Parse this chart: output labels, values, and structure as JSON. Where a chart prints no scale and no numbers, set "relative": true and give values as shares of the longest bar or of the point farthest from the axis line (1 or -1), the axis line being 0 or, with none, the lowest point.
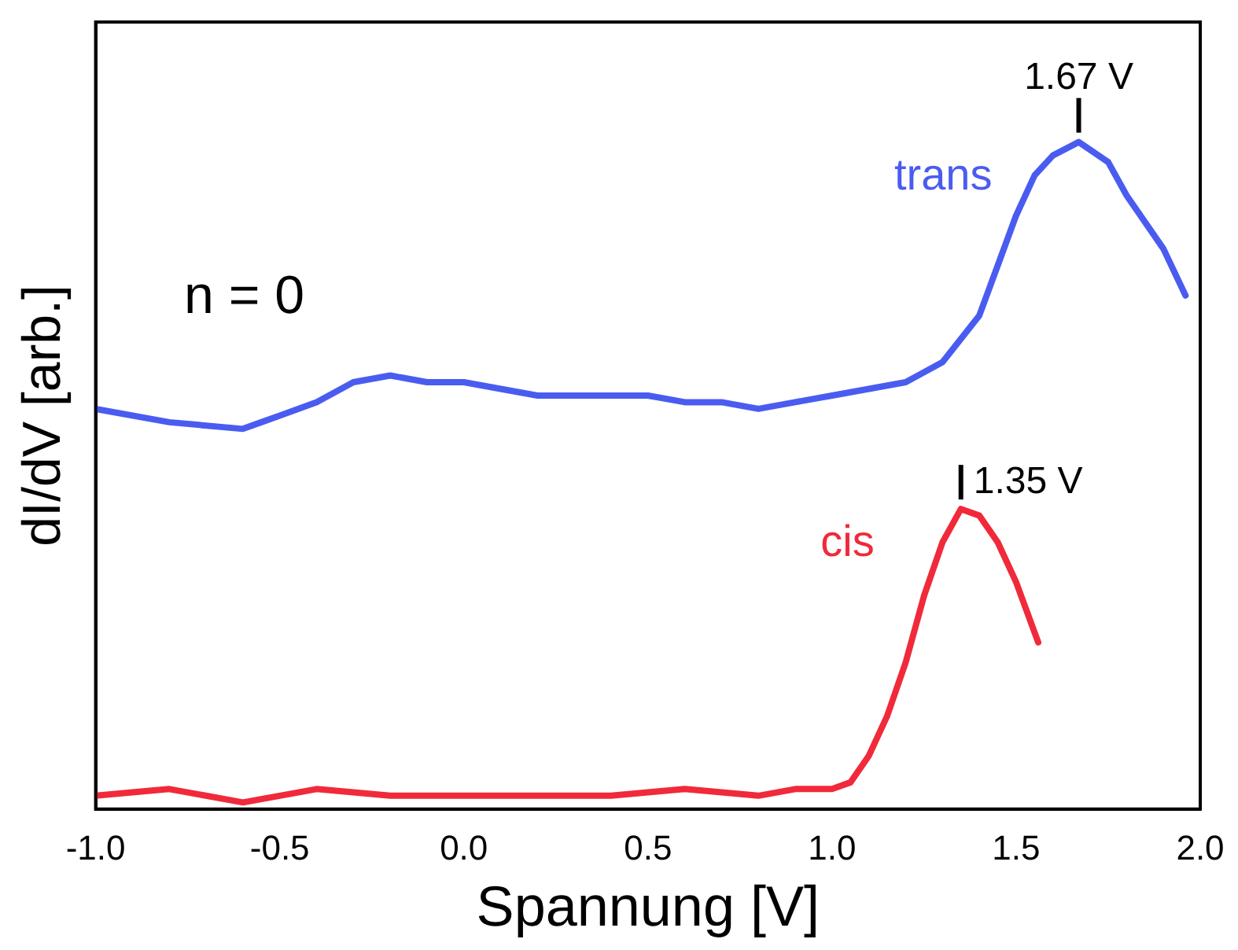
{
  "chart_data": {
    "type": "line",
    "xlabel": "Spannung [V]",
    "ylabel": "dI/dV [arb.]",
    "relative": true,
    "legend": false,
    "grid": false,
    "marker": "none",
    "line_style": "solid",
    "xlim": [
      -1.0,
      2.0
    ],
    "xticks": [
      {
        "value": -1,
        "label": "-1.0"
      },
      -0.5,
      {
        "value": 0,
        "label": "0.0"
      },
      0.5,
      {
        "value": 1,
        "label": "1.0"
      },
      1.5,
      {
        "value": 2,
        "label": "2.0"
      }
    ],
    "annotations": [
      "n = 0",
      {
        "text": "1.67 V",
        "x": 1.67,
        "y": 1
      },
      {
        "text": "1.35 V",
        "x": 1.35,
        "y": 0.45
      }
    ],
    "series": [
      {
        "name": "trans",
        "color": "#4a5cf0",
        "x": [
          -1.0,
          -0.8,
          -0.6,
          -0.55,
          -0.5,
          -0.4,
          -0.3,
          -0.2,
          -0.1,
          0.0,
          0.1,
          0.2,
          0.3,
          0.4,
          0.5,
          0.6,
          0.7,
          0.8,
          0.9,
          1.0,
          1.1,
          1.2,
          1.3,
          1.4,
          1.5,
          1.55,
          1.6,
          1.67,
          1.75,
          1.8,
          1.9,
          1.96
        ],
        "values": [
          0.6,
          0.58,
          0.57,
          0.58,
          0.59,
          0.61,
          0.64,
          0.65,
          0.64,
          0.64,
          0.63,
          0.62,
          0.62,
          0.62,
          0.62,
          0.61,
          0.61,
          0.6,
          0.61,
          0.62,
          0.63,
          0.64,
          0.67,
          0.74,
          0.89,
          0.95,
          0.98,
          1,
          0.97,
          0.92,
          0.84,
          0.77
        ]
      },
      {
        "name": "cis",
        "color": "#f02a3a",
        "x": [
          -1.0,
          -0.8,
          -0.6,
          -0.4,
          -0.2,
          0.0,
          0.2,
          0.4,
          0.6,
          0.8,
          0.9,
          1.0,
          1.05,
          1.1,
          1.15,
          1.2,
          1.25,
          1.3,
          1.35,
          1.4,
          1.45,
          1.5,
          1.56
        ],
        "values": [
          0.02,
          0.03,
          0.01,
          0.03,
          0.02,
          0.02,
          0.02,
          0.02,
          0.03,
          0.02,
          0.03,
          0.03,
          0.04,
          0.08,
          0.14,
          0.22,
          0.32,
          0.4,
          0.45,
          0.44,
          0.4,
          0.34,
          0.25
        ]
      }
    ]
  }
}
